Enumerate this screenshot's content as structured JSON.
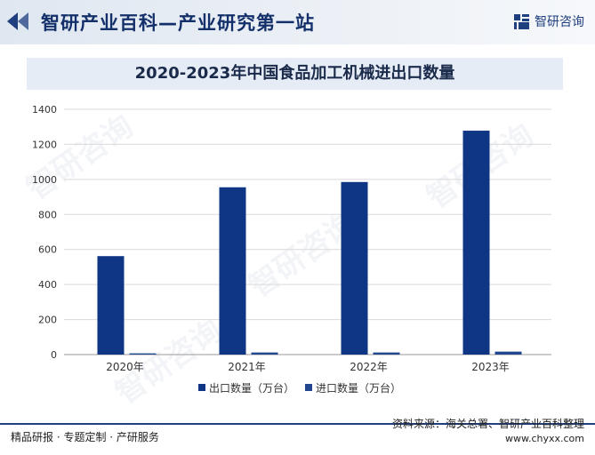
{
  "header": {
    "site_title": "智研产业百科—产业研究第一站",
    "brand_name": "智研咨询"
  },
  "watermark": "智研咨询",
  "footer": {
    "tagline": "精品研报 · 专题定制 · 产研服务",
    "source": "资料来源：海关总署、智研产业百科整理",
    "website": "www.chyxx.com"
  },
  "colors": {
    "accent": "#1f3f7f",
    "export_bar": "#0f3585",
    "import_bar": "#23478f"
  },
  "chart_data": {
    "type": "bar",
    "title": "2020-2023年中国食品加工机械进出口数量",
    "categories": [
      "2020年",
      "2021年",
      "2022年",
      "2023年"
    ],
    "series": [
      {
        "name": "出口数量（万台）",
        "values": [
          562,
          955,
          985,
          1278
        ]
      },
      {
        "name": "进口数量（万台）",
        "values": [
          7,
          12,
          12,
          17
        ]
      }
    ],
    "ylim": [
      0,
      1400
    ],
    "yticks": [
      0,
      200,
      400,
      600,
      800,
      1000,
      1200,
      1400
    ],
    "grid": true,
    "legend_position": "bottom"
  }
}
